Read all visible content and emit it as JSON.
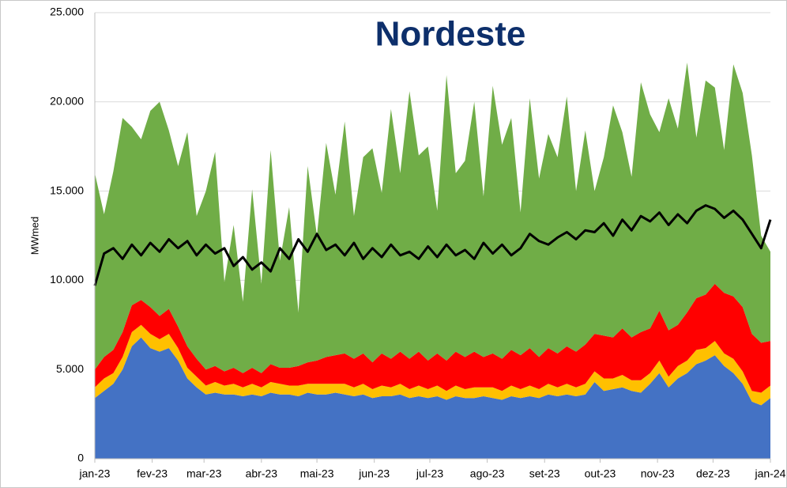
{
  "chart_data": {
    "type": "stacked_area",
    "title": "Nordeste",
    "y_label": "MWmed",
    "x": [
      0,
      5,
      10,
      15,
      20,
      25,
      30,
      35,
      40,
      45,
      50,
      55,
      60,
      65,
      70,
      75,
      80,
      85,
      90,
      95,
      100,
      105,
      110,
      115,
      120,
      125,
      130,
      135,
      140,
      145,
      150,
      155,
      160,
      165,
      170,
      175,
      180,
      185,
      190,
      195,
      200,
      205,
      210,
      215,
      220,
      225,
      230,
      235,
      240,
      245,
      250,
      255,
      260,
      265,
      270,
      275,
      280,
      285,
      290,
      295,
      300,
      305,
      310,
      315,
      320,
      325,
      330,
      335,
      340,
      345,
      350,
      355,
      360,
      365
    ],
    "xlim": [
      0,
      365
    ],
    "xticks": [
      {
        "value": 0,
        "label": "jan-23"
      },
      {
        "value": 31,
        "label": "fev-23"
      },
      {
        "value": 59,
        "label": "mar-23"
      },
      {
        "value": 90,
        "label": "abr-23"
      },
      {
        "value": 120,
        "label": "mai-23"
      },
      {
        "value": 151,
        "label": "jun-23"
      },
      {
        "value": 181,
        "label": "jul-23"
      },
      {
        "value": 212,
        "label": "ago-23"
      },
      {
        "value": 243,
        "label": "set-23"
      },
      {
        "value": 273,
        "label": "out-23"
      },
      {
        "value": 304,
        "label": "nov-23"
      },
      {
        "value": 334,
        "label": "dez-23"
      },
      {
        "value": 365,
        "label": "jan-24"
      }
    ],
    "ylim": [
      0,
      25000
    ],
    "yticks": [
      0,
      {
        "value": 5000,
        "label": "5.000"
      },
      {
        "value": 10000,
        "label": "10.000"
      },
      {
        "value": 15000,
        "label": "15.000"
      },
      {
        "value": 20000,
        "label": "20.000"
      },
      {
        "value": 25000,
        "label": "25.000"
      }
    ],
    "grid": true,
    "series": [
      {
        "color": "#4472c4",
        "values": [
          3400,
          3800,
          4200,
          5000,
          6300,
          6800,
          6200,
          6000,
          6200,
          5500,
          4500,
          4000,
          3600,
          3700,
          3600,
          3600,
          3500,
          3600,
          3500,
          3700,
          3600,
          3600,
          3500,
          3700,
          3600,
          3600,
          3700,
          3600,
          3500,
          3600,
          3400,
          3500,
          3500,
          3600,
          3400,
          3500,
          3400,
          3500,
          3300,
          3500,
          3400,
          3400,
          3500,
          3400,
          3300,
          3500,
          3400,
          3500,
          3400,
          3600,
          3500,
          3600,
          3500,
          3600,
          4300,
          3800,
          3900,
          4000,
          3800,
          3700,
          4200,
          4800,
          4000,
          4500,
          4800,
          5300,
          5500,
          5800,
          5200,
          4800,
          4200,
          3200,
          3000,
          3400
        ]
      },
      {
        "color": "#ffc000",
        "values": [
          600,
          700,
          600,
          700,
          800,
          700,
          800,
          700,
          800,
          700,
          600,
          600,
          500,
          600,
          500,
          600,
          500,
          600,
          500,
          600,
          600,
          500,
          600,
          500,
          600,
          600,
          500,
          600,
          500,
          600,
          500,
          600,
          500,
          600,
          500,
          600,
          500,
          600,
          500,
          600,
          500,
          600,
          500,
          600,
          500,
          600,
          500,
          600,
          500,
          600,
          500,
          600,
          500,
          600,
          600,
          700,
          600,
          700,
          600,
          700,
          600,
          700,
          600,
          700,
          700,
          800,
          700,
          800,
          700,
          800,
          700,
          600,
          700,
          700
        ]
      },
      {
        "color": "#ff0000",
        "values": [
          1000,
          1200,
          1300,
          1400,
          1500,
          1400,
          1500,
          1300,
          1400,
          1200,
          1200,
          1000,
          900,
          900,
          800,
          900,
          800,
          900,
          800,
          1000,
          900,
          1000,
          1100,
          1200,
          1300,
          1500,
          1600,
          1700,
          1600,
          1700,
          1500,
          1800,
          1600,
          1800,
          1700,
          1900,
          1600,
          1800,
          1700,
          1900,
          1800,
          2000,
          1700,
          1900,
          1800,
          2000,
          1900,
          2100,
          1800,
          2000,
          1900,
          2100,
          2000,
          2200,
          2100,
          2400,
          2300,
          2600,
          2400,
          2700,
          2500,
          2800,
          2600,
          2300,
          2700,
          2900,
          3000,
          3200,
          3400,
          3500,
          3600,
          3200,
          2800,
          2500
        ]
      },
      {
        "color": "#70ad47",
        "values": [
          11000,
          8000,
          10000,
          12000,
          10000,
          9000,
          11000,
          12000,
          10000,
          9000,
          12000,
          8000,
          10000,
          12000,
          5000,
          8000,
          4000,
          10000,
          5000,
          12000,
          6000,
          9000,
          3000,
          11000,
          7000,
          12000,
          9000,
          13000,
          8000,
          11000,
          12000,
          9000,
          14000,
          10000,
          15000,
          11000,
          12000,
          8000,
          16000,
          10000,
          11000,
          14000,
          9000,
          15000,
          12000,
          13000,
          8000,
          14000,
          10000,
          12000,
          11000,
          14000,
          9000,
          12000,
          8000,
          10000,
          13000,
          11000,
          9000,
          14000,
          12000,
          10000,
          13000,
          11000,
          14000,
          9000,
          12000,
          11000,
          8000,
          13000,
          12000,
          10000,
          6000,
          5000
        ]
      }
    ],
    "line": {
      "color": "#000000",
      "values": [
        9700,
        11500,
        11800,
        11200,
        12000,
        11400,
        12100,
        11600,
        12300,
        11800,
        12200,
        11400,
        12000,
        11500,
        11800,
        10800,
        11300,
        10600,
        11000,
        10500,
        11800,
        11200,
        12300,
        11600,
        12600,
        11700,
        12000,
        11400,
        12100,
        11200,
        11800,
        11300,
        12000,
        11400,
        11600,
        11200,
        11900,
        11300,
        12000,
        11400,
        11700,
        11200,
        12100,
        11500,
        12000,
        11400,
        11800,
        12600,
        12200,
        12000,
        12400,
        12700,
        12300,
        12800,
        12700,
        13200,
        12500,
        13400,
        12800,
        13600,
        13300,
        13800,
        13100,
        13700,
        13200,
        13900,
        14200,
        14000,
        13500,
        13900,
        13400,
        12600,
        11800,
        13400
      ]
    }
  }
}
